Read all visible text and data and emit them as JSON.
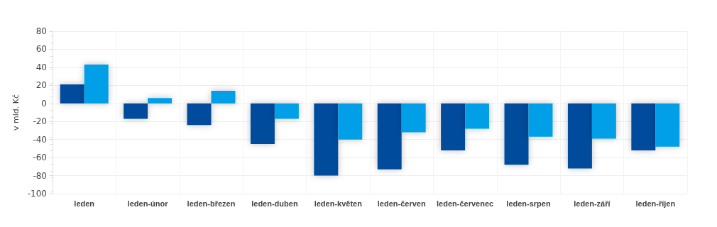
{
  "chart_data": {
    "type": "bar",
    "ylabel": "v mld. Kč",
    "categories": [
      "leden",
      "leden-únor",
      "leden-březen",
      "leden-duben",
      "leden-květen",
      "leden-červen",
      "leden-červenec",
      "leden-srpen",
      "leden-září",
      "leden-říjen"
    ],
    "series": [
      {
        "color": "#034c9c",
        "values": [
          21,
          -17,
          -24,
          -45,
          -80,
          -73,
          -52,
          -68,
          -72,
          -52
        ]
      },
      {
        "color": "#039fe8",
        "values": [
          43,
          6,
          14,
          -17,
          -40,
          -32,
          -28,
          -37,
          -39,
          -48
        ]
      }
    ],
    "ylim": [
      -100,
      80
    ],
    "yticks": [
      -100,
      -80,
      -60,
      -40,
      -20,
      0,
      20,
      40,
      60,
      80
    ],
    "grid": true
  }
}
